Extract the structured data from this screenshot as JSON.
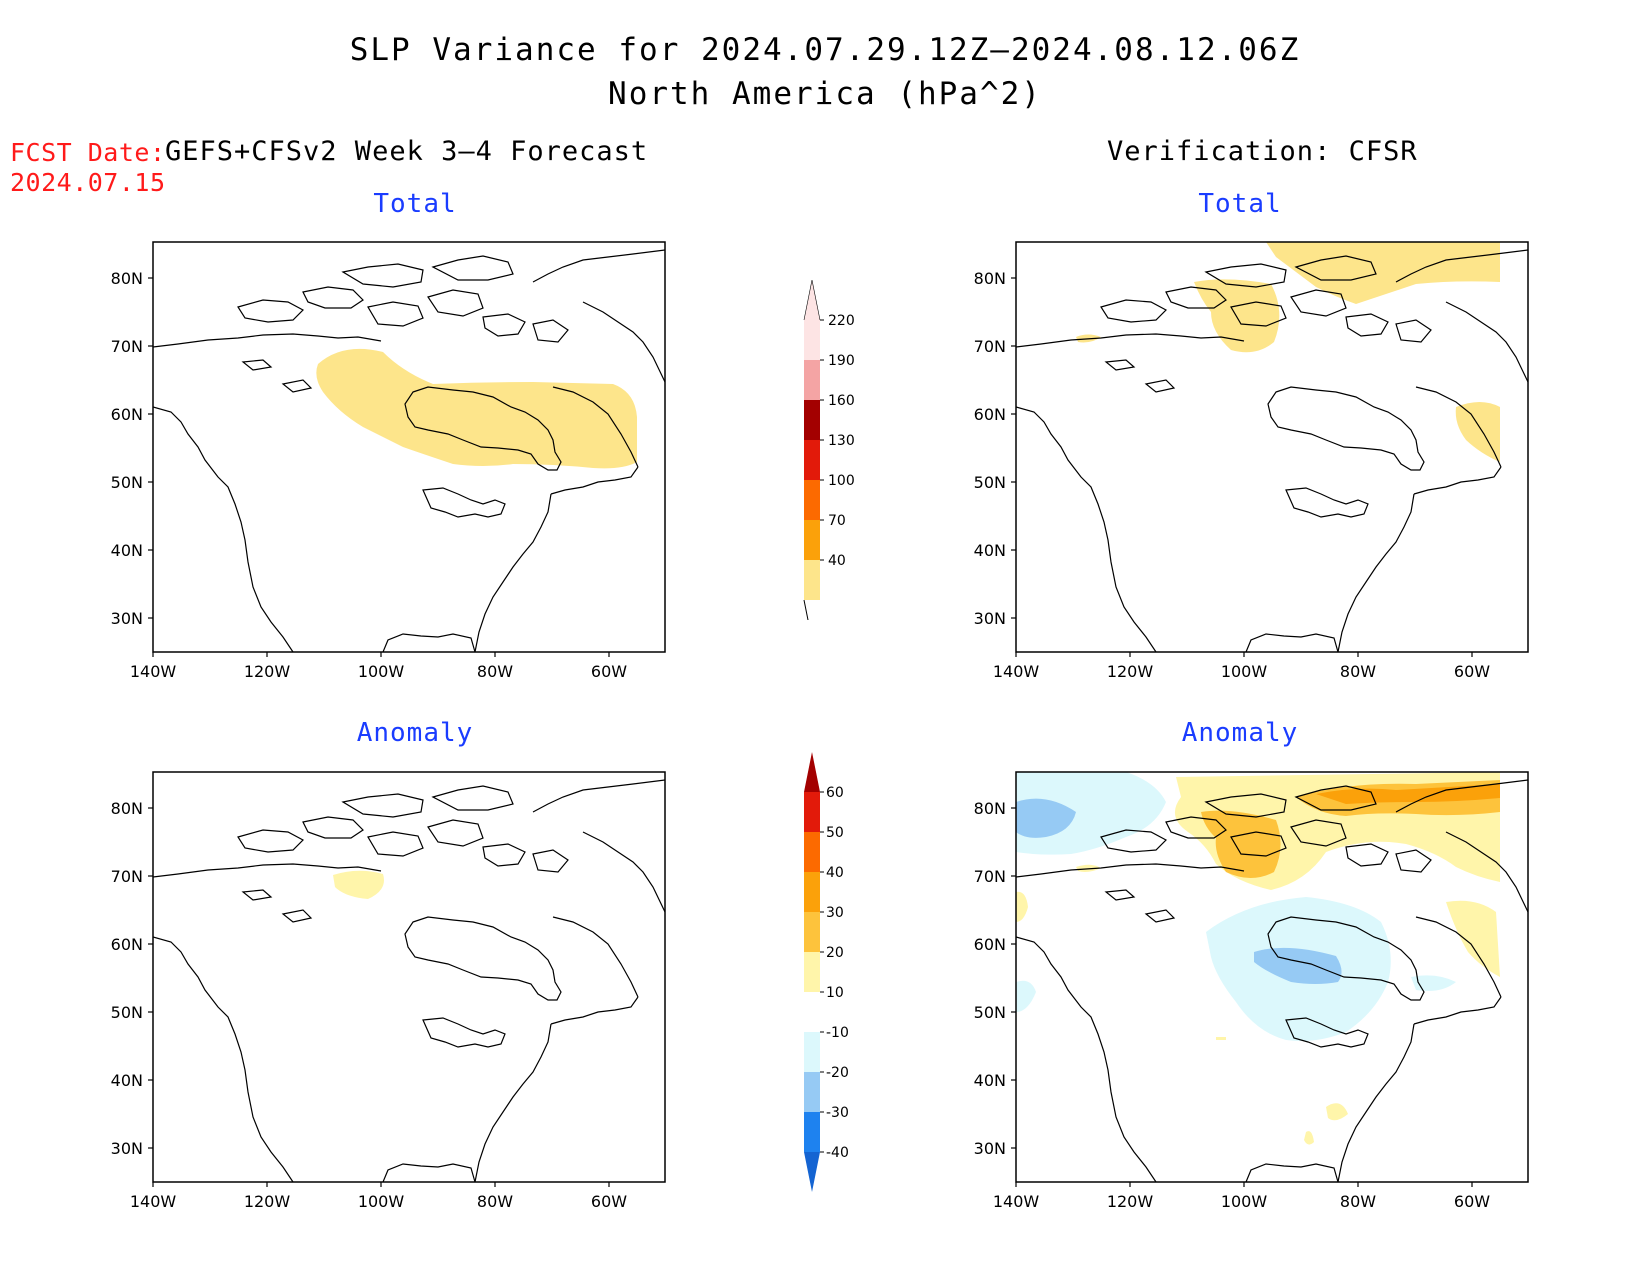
{
  "title": {
    "line1": "SLP Variance for 2024.07.29.12Z–2024.08.12.06Z",
    "line2": "North America (hPa^2)"
  },
  "fcst_date": {
    "label": "FCST Date:",
    "value": "2024.07.15"
  },
  "left_header": "GEFS+CFSv2 Week 3–4 Forecast",
  "right_header": "Verification: CFSR",
  "panels": {
    "top_left": "Total",
    "top_right": "Total",
    "bottom_left": "Anomaly",
    "bottom_right": "Anomaly"
  },
  "axes": {
    "lat_labels": [
      "80N",
      "70N",
      "60N",
      "50N",
      "40N",
      "30N"
    ],
    "lon_labels": [
      "140W",
      "120W",
      "100W",
      "80W",
      "60W"
    ]
  },
  "colorbar_total": {
    "levels": [
      "40",
      "70",
      "100",
      "130",
      "160",
      "190",
      "220"
    ],
    "colors": [
      "#fde58b",
      "#fba10a",
      "#fc6a00",
      "#e21a0a",
      "#a30000",
      "#f4a4a4",
      "#fde4e4"
    ]
  },
  "colorbar_anomaly": {
    "levels": [
      "-40",
      "-30",
      "-20",
      "-10",
      "10",
      "20",
      "30",
      "40",
      "50",
      "60"
    ],
    "colors": [
      "#1464d2",
      "#1e82ef",
      "#96caf4",
      "#dcf8fc",
      "#ffffff",
      "#fff5aa",
      "#fdc33c",
      "#fba10a",
      "#fc6a00",
      "#e21a0a",
      "#a30000"
    ]
  },
  "map_colors": {
    "light_yellow": "#fde58b",
    "pale_yellow": "#fff5aa",
    "orange": "#fdc33c",
    "dark_orange": "#fba10a",
    "pale_blue": "#dcf8fc",
    "light_blue": "#96caf4"
  }
}
